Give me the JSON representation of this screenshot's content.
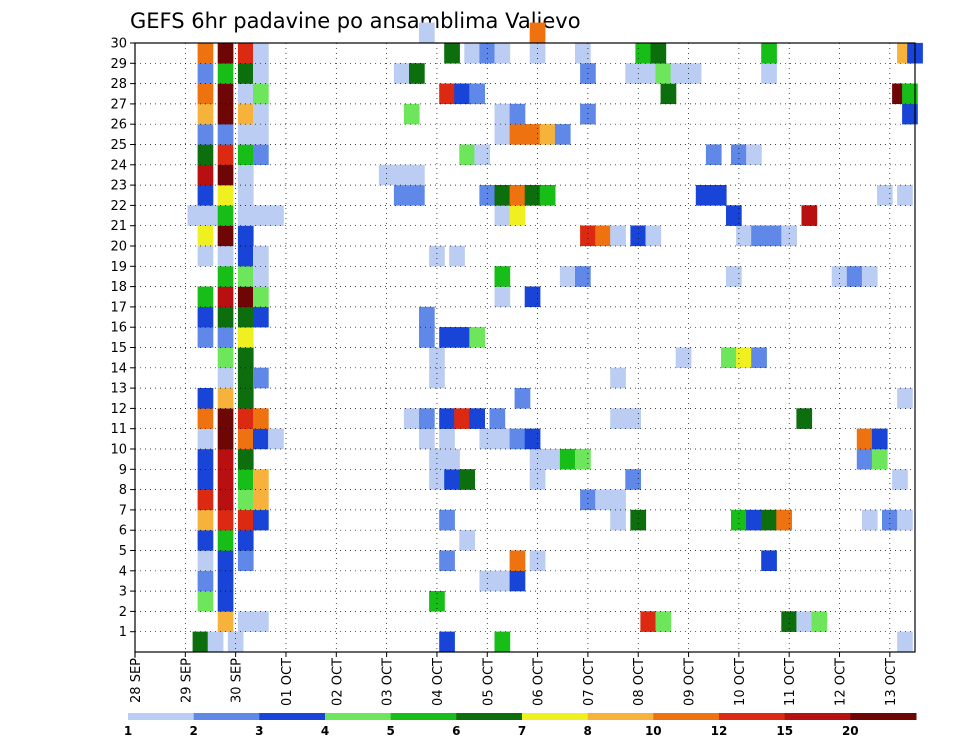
{
  "chart_data": {
    "type": "heatmap",
    "title": "GEFS 6hr padavine po ansamblima Valjevo",
    "x_labels": [
      "28 SEP",
      "29 SEP",
      "30 SEP",
      "01 OCT",
      "02 OCT",
      "03 OCT",
      "04 OCT",
      "05 OCT",
      "06 OCT",
      "07 OCT",
      "08 OCT",
      "09 OCT",
      "10 OCT",
      "11 OCT",
      "12 OCT",
      "13 OCT"
    ],
    "y_labels": [
      "1",
      "2",
      "3",
      "4",
      "5",
      "6",
      "7",
      "8",
      "9",
      "10",
      "11",
      "12",
      "13",
      "14",
      "15",
      "16",
      "17",
      "18",
      "19",
      "20",
      "21",
      "22",
      "23",
      "24",
      "25",
      "26",
      "27",
      "28",
      "29",
      "30"
    ],
    "y_range": [
      0,
      30
    ],
    "x_range": [
      0,
      15.5
    ],
    "grid": true,
    "legend": {
      "position": "bottom",
      "ticks": [
        "1",
        "2",
        "3",
        "4",
        "5",
        "6",
        "7",
        "8",
        "10",
        "12",
        "15",
        "20"
      ],
      "colors": [
        "#bccdf3",
        "#5f88e8",
        "#1845d8",
        "#6de65c",
        "#18be18",
        "#0d6e0d",
        "#f0f020",
        "#f6b23a",
        "#ee7310",
        "#dc2a12",
        "#b81010",
        "#6e0606"
      ]
    },
    "cells": [
      [
        1.3,
        0,
        6
      ],
      [
        1.6,
        0,
        1
      ],
      [
        2.0,
        0,
        1
      ],
      [
        6.2,
        0,
        3
      ],
      [
        7.3,
        0,
        5
      ],
      [
        15.3,
        0,
        1
      ],
      [
        1.8,
        1,
        8
      ],
      [
        2.2,
        1,
        1
      ],
      [
        2.5,
        1,
        1
      ],
      [
        10.2,
        1,
        10
      ],
      [
        10.5,
        1,
        4
      ],
      [
        13.0,
        1,
        6
      ],
      [
        13.3,
        1,
        1
      ],
      [
        13.6,
        1,
        4
      ],
      [
        1.4,
        2,
        4
      ],
      [
        1.8,
        2,
        3
      ],
      [
        6.0,
        2,
        5
      ],
      [
        1.4,
        3,
        2
      ],
      [
        1.8,
        3,
        3
      ],
      [
        7.0,
        3,
        1
      ],
      [
        7.3,
        3,
        1
      ],
      [
        7.6,
        3,
        3
      ],
      [
        1.4,
        4,
        1
      ],
      [
        1.8,
        4,
        3
      ],
      [
        2.2,
        4,
        2
      ],
      [
        6.2,
        4,
        2
      ],
      [
        7.6,
        4,
        9
      ],
      [
        8.0,
        4,
        1
      ],
      [
        12.6,
        4,
        3
      ],
      [
        1.4,
        5,
        3
      ],
      [
        1.8,
        5,
        5
      ],
      [
        2.2,
        5,
        3
      ],
      [
        6.6,
        5,
        1
      ],
      [
        1.4,
        6,
        8
      ],
      [
        1.8,
        6,
        10
      ],
      [
        2.2,
        6,
        10
      ],
      [
        2.5,
        6,
        3
      ],
      [
        6.2,
        6,
        2
      ],
      [
        9.6,
        6,
        1
      ],
      [
        10.0,
        6,
        6
      ],
      [
        12.0,
        6,
        5
      ],
      [
        12.3,
        6,
        3
      ],
      [
        12.6,
        6,
        6
      ],
      [
        12.9,
        6,
        9
      ],
      [
        14.6,
        6,
        1
      ],
      [
        15.0,
        6,
        2
      ],
      [
        15.3,
        6,
        1
      ],
      [
        1.4,
        7,
        10
      ],
      [
        1.8,
        7,
        11
      ],
      [
        2.2,
        7,
        4
      ],
      [
        2.5,
        7,
        8
      ],
      [
        9.0,
        7,
        2
      ],
      [
        9.3,
        7,
        1
      ],
      [
        9.6,
        7,
        1
      ],
      [
        1.4,
        8,
        3
      ],
      [
        1.8,
        8,
        11
      ],
      [
        2.2,
        8,
        5
      ],
      [
        2.5,
        8,
        8
      ],
      [
        6.0,
        8,
        1
      ],
      [
        6.3,
        8,
        3
      ],
      [
        6.6,
        8,
        6
      ],
      [
        8.0,
        8,
        1
      ],
      [
        9.9,
        8,
        2
      ],
      [
        15.2,
        8,
        1
      ],
      [
        1.4,
        9,
        3
      ],
      [
        1.8,
        9,
        11
      ],
      [
        2.2,
        9,
        6
      ],
      [
        6.0,
        9,
        1
      ],
      [
        6.3,
        9,
        1
      ],
      [
        8.0,
        9,
        1
      ],
      [
        8.3,
        9,
        1
      ],
      [
        8.6,
        9,
        5
      ],
      [
        8.9,
        9,
        4
      ],
      [
        14.5,
        9,
        2
      ],
      [
        14.8,
        9,
        4
      ],
      [
        1.4,
        10,
        1
      ],
      [
        1.8,
        10,
        12
      ],
      [
        2.2,
        10,
        9
      ],
      [
        2.5,
        10,
        3
      ],
      [
        2.8,
        10,
        1
      ],
      [
        5.8,
        10,
        1
      ],
      [
        6.2,
        10,
        1
      ],
      [
        7.0,
        10,
        1
      ],
      [
        7.3,
        10,
        1
      ],
      [
        7.6,
        10,
        2
      ],
      [
        7.9,
        10,
        3
      ],
      [
        14.5,
        10,
        9
      ],
      [
        14.8,
        10,
        3
      ],
      [
        1.4,
        11,
        9
      ],
      [
        1.8,
        11,
        12
      ],
      [
        2.2,
        11,
        10
      ],
      [
        2.5,
        11,
        9
      ],
      [
        5.5,
        11,
        1
      ],
      [
        5.8,
        11,
        2
      ],
      [
        6.2,
        11,
        3
      ],
      [
        6.5,
        11,
        10
      ],
      [
        6.8,
        11,
        3
      ],
      [
        7.2,
        11,
        2
      ],
      [
        9.6,
        11,
        1
      ],
      [
        9.9,
        11,
        1
      ],
      [
        13.3,
        11,
        6
      ],
      [
        1.4,
        12,
        3
      ],
      [
        1.8,
        12,
        8
      ],
      [
        2.2,
        12,
        6
      ],
      [
        7.7,
        12,
        2
      ],
      [
        15.3,
        12,
        1
      ],
      [
        1.8,
        13,
        1
      ],
      [
        2.2,
        13,
        6
      ],
      [
        2.5,
        13,
        2
      ],
      [
        6.0,
        13,
        1
      ],
      [
        9.6,
        13,
        1
      ],
      [
        1.8,
        14,
        4
      ],
      [
        2.2,
        14,
        6
      ],
      [
        6.0,
        14,
        1
      ],
      [
        10.9,
        14,
        1
      ],
      [
        11.8,
        14,
        4
      ],
      [
        12.1,
        14,
        7
      ],
      [
        12.4,
        14,
        2
      ],
      [
        1.4,
        15,
        2
      ],
      [
        1.8,
        15,
        2
      ],
      [
        2.2,
        15,
        7
      ],
      [
        5.8,
        15,
        2
      ],
      [
        6.2,
        15,
        3
      ],
      [
        6.5,
        15,
        3
      ],
      [
        6.8,
        15,
        4
      ],
      [
        1.4,
        16,
        3
      ],
      [
        1.8,
        16,
        6
      ],
      [
        2.2,
        16,
        6
      ],
      [
        2.5,
        16,
        3
      ],
      [
        5.8,
        16,
        2
      ],
      [
        1.4,
        17,
        5
      ],
      [
        1.8,
        17,
        11
      ],
      [
        2.2,
        17,
        12
      ],
      [
        2.5,
        17,
        4
      ],
      [
        7.3,
        17,
        1
      ],
      [
        7.9,
        17,
        3
      ],
      [
        1.8,
        18,
        5
      ],
      [
        2.2,
        18,
        4
      ],
      [
        2.5,
        18,
        1
      ],
      [
        7.3,
        18,
        5
      ],
      [
        8.6,
        18,
        1
      ],
      [
        8.9,
        18,
        2
      ],
      [
        11.9,
        18,
        1
      ],
      [
        14.0,
        18,
        1
      ],
      [
        14.3,
        18,
        2
      ],
      [
        14.6,
        18,
        1
      ],
      [
        1.4,
        19,
        1
      ],
      [
        1.8,
        19,
        1
      ],
      [
        2.2,
        19,
        3
      ],
      [
        2.5,
        19,
        1
      ],
      [
        6.0,
        19,
        1
      ],
      [
        6.4,
        19,
        1
      ],
      [
        1.4,
        20,
        7
      ],
      [
        1.8,
        20,
        12
      ],
      [
        2.2,
        20,
        3
      ],
      [
        9.0,
        20,
        10
      ],
      [
        9.3,
        20,
        9
      ],
      [
        9.6,
        20,
        1
      ],
      [
        10.0,
        20,
        3
      ],
      [
        10.3,
        20,
        1
      ],
      [
        12.1,
        20,
        1
      ],
      [
        12.4,
        20,
        2
      ],
      [
        12.7,
        20,
        2
      ],
      [
        13.0,
        20,
        1
      ],
      [
        1.2,
        21,
        1
      ],
      [
        1.5,
        21,
        1
      ],
      [
        1.8,
        21,
        5
      ],
      [
        2.2,
        21,
        1
      ],
      [
        2.5,
        21,
        1
      ],
      [
        2.8,
        21,
        1
      ],
      [
        7.3,
        21,
        1
      ],
      [
        7.6,
        21,
        7
      ],
      [
        11.9,
        21,
        3
      ],
      [
        13.4,
        21,
        11
      ],
      [
        1.4,
        22,
        3
      ],
      [
        1.8,
        22,
        7
      ],
      [
        2.2,
        22,
        1
      ],
      [
        5.3,
        22,
        2
      ],
      [
        5.6,
        22,
        2
      ],
      [
        7.0,
        22,
        2
      ],
      [
        7.3,
        22,
        6
      ],
      [
        7.6,
        22,
        9
      ],
      [
        7.9,
        22,
        6
      ],
      [
        8.2,
        22,
        5
      ],
      [
        11.3,
        22,
        3
      ],
      [
        11.6,
        22,
        3
      ],
      [
        14.9,
        22,
        1
      ],
      [
        15.3,
        22,
        1
      ],
      [
        1.4,
        23,
        11
      ],
      [
        1.8,
        23,
        12
      ],
      [
        2.2,
        23,
        1
      ],
      [
        5.0,
        23,
        1
      ],
      [
        5.3,
        23,
        1
      ],
      [
        5.6,
        23,
        1
      ],
      [
        1.4,
        24,
        6
      ],
      [
        1.8,
        24,
        10
      ],
      [
        2.2,
        24,
        5
      ],
      [
        2.5,
        24,
        2
      ],
      [
        6.6,
        24,
        4
      ],
      [
        6.9,
        24,
        1
      ],
      [
        11.5,
        24,
        2
      ],
      [
        12.0,
        24,
        2
      ],
      [
        12.3,
        24,
        1
      ],
      [
        1.4,
        25,
        2
      ],
      [
        1.8,
        25,
        2
      ],
      [
        2.2,
        25,
        1
      ],
      [
        2.5,
        25,
        1
      ],
      [
        7.3,
        25,
        1
      ],
      [
        7.6,
        25,
        9
      ],
      [
        7.9,
        25,
        9
      ],
      [
        8.2,
        25,
        8
      ],
      [
        8.5,
        25,
        2
      ],
      [
        1.4,
        26,
        8
      ],
      [
        1.8,
        26,
        12
      ],
      [
        2.2,
        26,
        8
      ],
      [
        2.5,
        26,
        1
      ],
      [
        5.5,
        26,
        4
      ],
      [
        7.3,
        26,
        1
      ],
      [
        7.6,
        26,
        2
      ],
      [
        9.0,
        26,
        2
      ],
      [
        15.4,
        26,
        3
      ],
      [
        1.4,
        27,
        9
      ],
      [
        1.8,
        27,
        12
      ],
      [
        2.2,
        27,
        1
      ],
      [
        2.5,
        27,
        4
      ],
      [
        6.2,
        27,
        10
      ],
      [
        6.5,
        27,
        3
      ],
      [
        6.8,
        27,
        2
      ],
      [
        10.6,
        27,
        6
      ],
      [
        15.2,
        27,
        12
      ],
      [
        15.4,
        27,
        5
      ],
      [
        1.4,
        28,
        2
      ],
      [
        1.8,
        28,
        5
      ],
      [
        2.2,
        28,
        6
      ],
      [
        2.5,
        28,
        1
      ],
      [
        5.3,
        28,
        1
      ],
      [
        5.6,
        28,
        6
      ],
      [
        9.0,
        28,
        2
      ],
      [
        9.9,
        28,
        1
      ],
      [
        10.2,
        28,
        1
      ],
      [
        10.5,
        28,
        4
      ],
      [
        10.8,
        28,
        1
      ],
      [
        11.1,
        28,
        1
      ],
      [
        12.6,
        28,
        1
      ],
      [
        1.4,
        29,
        9
      ],
      [
        1.8,
        29,
        12
      ],
      [
        2.2,
        29,
        10
      ],
      [
        2.5,
        29,
        1
      ],
      [
        6.3,
        29,
        6
      ],
      [
        6.7,
        29,
        1
      ],
      [
        7.0,
        29,
        2
      ],
      [
        7.3,
        29,
        1
      ],
      [
        8.0,
        29,
        1
      ],
      [
        8.9,
        29,
        1
      ],
      [
        10.1,
        29,
        5
      ],
      [
        10.4,
        29,
        6
      ],
      [
        12.6,
        29,
        5
      ],
      [
        15.3,
        29,
        8
      ],
      [
        15.5,
        29,
        3
      ],
      [
        5.8,
        30,
        1
      ],
      [
        8.0,
        30,
        9
      ]
    ]
  }
}
